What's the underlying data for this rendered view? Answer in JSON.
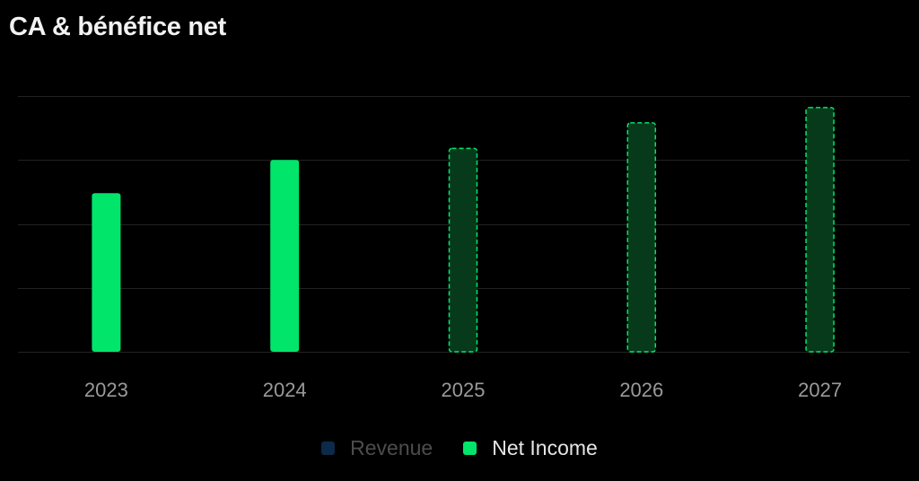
{
  "title": "CA & bénéfice net",
  "legend": [
    {
      "label": "Revenue",
      "color": "#0d2a4a",
      "text_color": "#4d4d4d",
      "active": false
    },
    {
      "label": "Net Income",
      "color": "#00e56a",
      "text_color": "#e6e6e6",
      "active": true
    }
  ],
  "colors": {
    "background": "#000000",
    "grid": "#222222",
    "bar_actual": "#00e56a",
    "bar_forecast_fill": "#063a1a",
    "bar_forecast_stroke": "#00e56a",
    "tick_label": "#9a9a9a"
  },
  "chart_data": {
    "type": "bar",
    "title": "CA & bénéfice net",
    "categories": [
      "2023",
      "2024",
      "2025",
      "2026",
      "2027"
    ],
    "series": [
      {
        "name": "Net Income",
        "values": [
          62,
          75,
          79.5,
          89.5,
          95.5
        ],
        "forecast": [
          false,
          false,
          true,
          true,
          true
        ]
      }
    ],
    "ylim": [
      0,
      100
    ],
    "grid": true,
    "y_tick_labels_shown": false,
    "legend_position": "bottom"
  }
}
